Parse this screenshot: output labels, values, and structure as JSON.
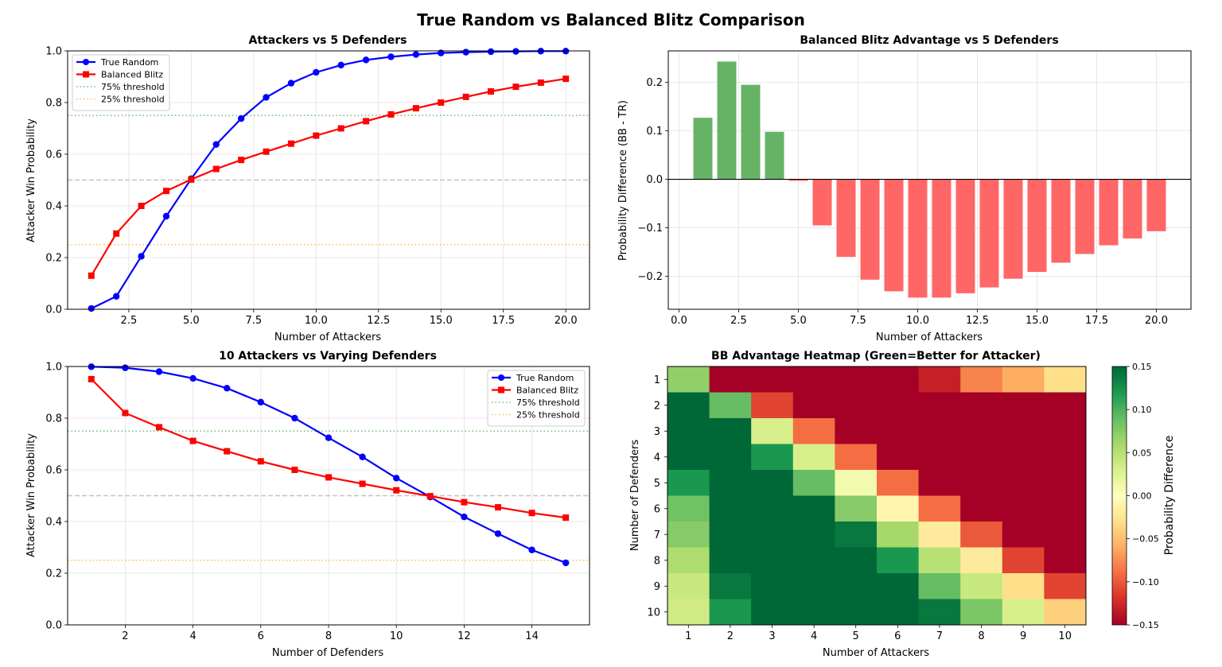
{
  "figure": {
    "title": "True Random vs Balanced Blitz Comparison"
  },
  "colors": {
    "true_random": "#0000ff",
    "balanced_blitz": "#ff0000",
    "threshold_75": "#4caf50",
    "threshold_25": "#ffa726",
    "midline": "#999999",
    "positive_bar": "#66b366",
    "negative_bar": "#ff6666"
  },
  "chart_data": [
    {
      "type": "line",
      "title": "Attackers vs 5 Defenders",
      "xlabel": "Number of Attackers",
      "ylabel": "Attacker Win Probability",
      "xlim": [
        0.05,
        20.95
      ],
      "ylim": [
        0,
        1
      ],
      "xticks": [
        2.5,
        5.0,
        7.5,
        10.0,
        12.5,
        15.0,
        17.5,
        20.0
      ],
      "xtick_labels": [
        "2.5",
        "5.0",
        "7.5",
        "10.0",
        "12.5",
        "15.0",
        "17.5",
        "20.0"
      ],
      "yticks": [
        0,
        0.2,
        0.4,
        0.6,
        0.8,
        1.0
      ],
      "ytick_labels": [
        "0.0",
        "0.2",
        "0.4",
        "0.6",
        "0.8",
        "1.0"
      ],
      "grid": true,
      "legend_position": "top-left",
      "x": [
        1,
        2,
        3,
        4,
        5,
        6,
        7,
        8,
        9,
        10,
        11,
        12,
        13,
        14,
        15,
        16,
        17,
        18,
        19,
        20
      ],
      "series": [
        {
          "name": "True Random",
          "color": "#0000ff",
          "marker": "circle",
          "values": [
            0.003,
            0.05,
            0.205,
            0.36,
            0.505,
            0.638,
            0.738,
            0.82,
            0.875,
            0.917,
            0.945,
            0.965,
            0.977,
            0.986,
            0.992,
            0.995,
            0.997,
            0.998,
            0.999,
            0.999
          ]
        },
        {
          "name": "Balanced Blitz",
          "color": "#ff0000",
          "marker": "square",
          "values": [
            0.13,
            0.293,
            0.4,
            0.458,
            0.502,
            0.543,
            0.578,
            0.61,
            0.641,
            0.672,
            0.7,
            0.728,
            0.754,
            0.778,
            0.8,
            0.822,
            0.843,
            0.861,
            0.877,
            0.892
          ]
        }
      ],
      "hlines": [
        {
          "name": "75% threshold",
          "y": 0.75,
          "color": "#4caf50",
          "style": "dotted",
          "legend": true
        },
        {
          "name": "25% threshold",
          "y": 0.25,
          "color": "#ffa726",
          "style": "dotted",
          "legend": true
        },
        {
          "name": "",
          "y": 0.5,
          "color": "#999999",
          "style": "dashed",
          "legend": false
        }
      ]
    },
    {
      "type": "bar",
      "title": "Balanced Blitz Advantage vs 5 Defenders",
      "xlabel": "Number of Attackers",
      "ylabel": "Probability Difference (BB - TR)",
      "xlim": [
        -0.45,
        21.45
      ],
      "ylim": [
        -0.268,
        0.265
      ],
      "xticks": [
        0,
        2.5,
        5.0,
        7.5,
        10.0,
        12.5,
        15.0,
        17.5,
        20.0
      ],
      "xtick_labels": [
        "0.0",
        "2.5",
        "5.0",
        "7.5",
        "10.0",
        "12.5",
        "15.0",
        "17.5",
        "20.0"
      ],
      "yticks": [
        -0.2,
        -0.1,
        0.0,
        0.1,
        0.2
      ],
      "ytick_labels": [
        "−0.2",
        "−0.1",
        "0.0",
        "0.1",
        "0.2"
      ],
      "grid": true,
      "x": [
        1,
        2,
        3,
        4,
        5,
        6,
        7,
        8,
        9,
        10,
        11,
        12,
        13,
        14,
        15,
        16,
        17,
        18,
        19,
        20
      ],
      "values": [
        0.127,
        0.243,
        0.195,
        0.098,
        -0.003,
        -0.095,
        -0.16,
        -0.207,
        -0.231,
        -0.244,
        -0.244,
        -0.235,
        -0.223,
        -0.205,
        -0.191,
        -0.172,
        -0.154,
        -0.136,
        -0.122,
        -0.107
      ]
    },
    {
      "type": "line",
      "title": "10 Attackers vs Varying Defenders",
      "xlabel": "Number of Defenders",
      "ylabel": "Attacker Win Probability",
      "xlim": [
        0.3,
        15.7
      ],
      "ylim": [
        0,
        1
      ],
      "xticks": [
        2,
        4,
        6,
        8,
        10,
        12,
        14
      ],
      "xtick_labels": [
        "2",
        "4",
        "6",
        "8",
        "10",
        "12",
        "14"
      ],
      "yticks": [
        0,
        0.2,
        0.4,
        0.6,
        0.8,
        1.0
      ],
      "ytick_labels": [
        "0.0",
        "0.2",
        "0.4",
        "0.6",
        "0.8",
        "1.0"
      ],
      "grid": true,
      "legend_position": "top-right",
      "x": [
        1,
        2,
        3,
        4,
        5,
        6,
        7,
        8,
        9,
        10,
        11,
        12,
        13,
        14,
        15
      ],
      "series": [
        {
          "name": "True Random",
          "color": "#0000ff",
          "marker": "circle",
          "values": [
            0.999,
            0.995,
            0.98,
            0.954,
            0.916,
            0.862,
            0.8,
            0.724,
            0.65,
            0.568,
            0.495,
            0.418,
            0.353,
            0.29,
            0.24
          ]
        },
        {
          "name": "Balanced Blitz",
          "color": "#ff0000",
          "marker": "square",
          "values": [
            0.951,
            0.82,
            0.765,
            0.712,
            0.672,
            0.633,
            0.6,
            0.571,
            0.546,
            0.521,
            0.498,
            0.475,
            0.455,
            0.433,
            0.415
          ]
        }
      ],
      "hlines": [
        {
          "name": "75% threshold",
          "y": 0.75,
          "color": "#4caf50",
          "style": "dotted",
          "legend": true
        },
        {
          "name": "25% threshold",
          "y": 0.25,
          "color": "#ffa726",
          "style": "dotted",
          "legend": true
        },
        {
          "name": "",
          "y": 0.5,
          "color": "#999999",
          "style": "dashed",
          "legend": false
        }
      ]
    },
    {
      "type": "heatmap",
      "title": "BB Advantage Heatmap (Green=Better for Attacker)",
      "xlabel": "Number of Attackers",
      "ylabel": "Number of Defenders",
      "xcategories": [
        "1",
        "2",
        "3",
        "4",
        "5",
        "6",
        "7",
        "8",
        "9",
        "10"
      ],
      "ycategories": [
        "1",
        "2",
        "3",
        "4",
        "5",
        "6",
        "7",
        "8",
        "9",
        "10"
      ],
      "vmin": -0.15,
      "vmax": 0.15,
      "colormap": "RdYlGn",
      "colorbar_label": "Probability Difference",
      "colorbar_ticks": [
        -0.15,
        -0.1,
        -0.05,
        0.0,
        0.05,
        0.1,
        0.15
      ],
      "colorbar_tick_labels": [
        "−0.15",
        "−0.10",
        "−0.05",
        "0.00",
        "0.05",
        "0.10",
        "0.15"
      ],
      "values": [
        [
          0.07,
          -0.3,
          -0.3,
          -0.3,
          -0.3,
          -0.3,
          -0.13,
          -0.08,
          -0.06,
          -0.03
        ],
        [
          0.2,
          0.09,
          -0.11,
          -0.3,
          -0.3,
          -0.3,
          -0.3,
          -0.3,
          -0.3,
          -0.3
        ],
        [
          0.2,
          0.2,
          0.03,
          -0.09,
          -0.3,
          -0.3,
          -0.3,
          -0.3,
          -0.3,
          -0.3
        ],
        [
          0.2,
          0.2,
          0.12,
          0.03,
          -0.09,
          -0.3,
          -0.3,
          -0.3,
          -0.3,
          -0.3
        ],
        [
          0.12,
          0.2,
          0.2,
          0.09,
          0.01,
          -0.09,
          -0.3,
          -0.3,
          -0.3,
          -0.3
        ],
        [
          0.085,
          0.2,
          0.2,
          0.2,
          0.075,
          -0.01,
          -0.09,
          -0.3,
          -0.3,
          -0.3
        ],
        [
          0.075,
          0.2,
          0.2,
          0.2,
          0.14,
          0.06,
          -0.02,
          -0.1,
          -0.3,
          -0.3
        ],
        [
          0.055,
          0.2,
          0.2,
          0.2,
          0.2,
          0.12,
          0.05,
          -0.02,
          -0.11,
          -0.3
        ],
        [
          0.04,
          0.14,
          0.2,
          0.2,
          0.2,
          0.2,
          0.09,
          0.04,
          -0.03,
          -0.11
        ],
        [
          0.035,
          0.12,
          0.2,
          0.2,
          0.2,
          0.2,
          0.14,
          0.08,
          0.03,
          -0.04
        ]
      ]
    }
  ]
}
